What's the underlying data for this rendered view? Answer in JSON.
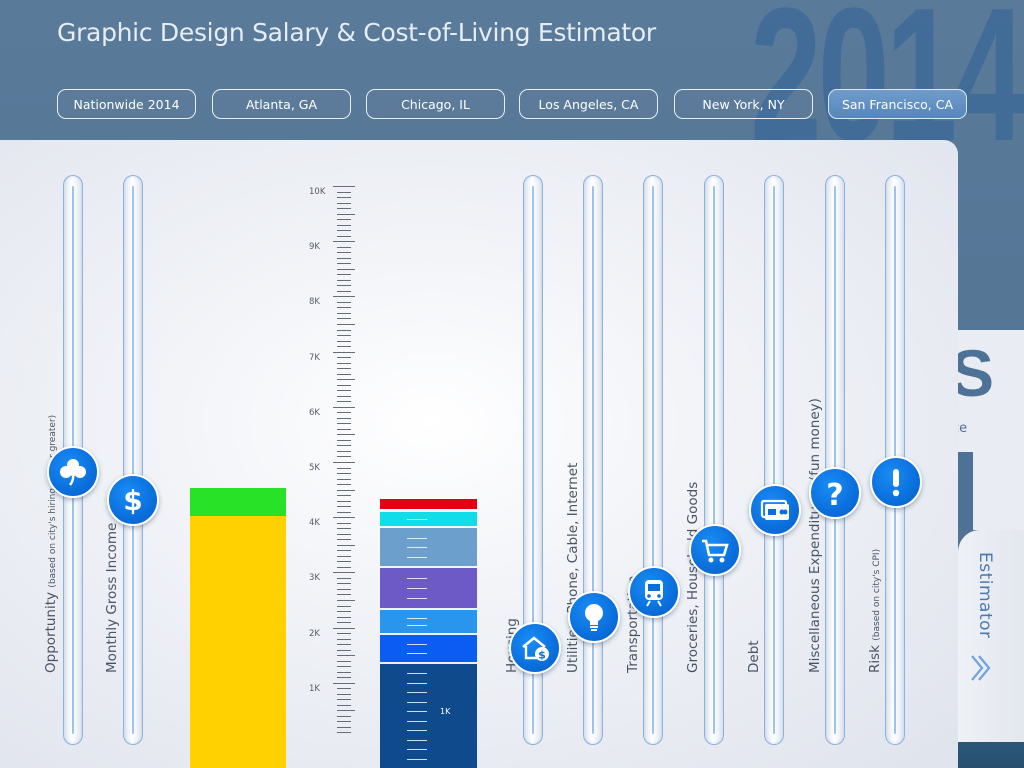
{
  "app": {
    "title": "Graphic Design Salary & Cost-of-Living Estimator",
    "year": "2014"
  },
  "cities": [
    {
      "label": "Nationwide 2014",
      "active": false
    },
    {
      "label": "Atlanta, GA",
      "active": false
    },
    {
      "label": "Chicago, IL",
      "active": false
    },
    {
      "label": "Los Angeles, CA",
      "active": false
    },
    {
      "label": "New York, NY",
      "active": false
    },
    {
      "label": "San Francisco, CA",
      "active": true
    }
  ],
  "sliders": {
    "opportunity": {
      "label": "Opportunity",
      "note": "(based on city's hiring",
      "note2": "of 1 or greater)",
      "icon": "clover-icon"
    },
    "income": {
      "label": "Monthly Gross Income",
      "icon": "dollar-icon"
    },
    "housing": {
      "label": "Housing",
      "icon": "house-dollar-icon"
    },
    "utilities": {
      "label": "Utilities, Phone, Cable, Internet",
      "icon": "lightbulb-icon"
    },
    "transportation": {
      "label": "Transportation",
      "icon": "train-icon"
    },
    "groceries": {
      "label": "Groceries, Household Goods",
      "icon": "cart-icon"
    },
    "debt": {
      "label": "Debt",
      "icon": "credit-card-icon"
    },
    "misc": {
      "label": "Miscellaneous Expenditures (fun money)",
      "icon": "question-icon"
    },
    "risk": {
      "label": "Risk",
      "note": "(based on city's CPI)",
      "icon": "exclamation-icon"
    }
  },
  "scale": {
    "labels": [
      "10K",
      "9K",
      "8K",
      "7K",
      "6K",
      "5K",
      "4K",
      "3K",
      "2K",
      "1K"
    ],
    "inner_label": "1K"
  },
  "tab": {
    "label": "Estimator"
  },
  "peek": {
    "big": "S",
    "small": "ce"
  },
  "colors": {
    "accent": "#0a6fdc",
    "income_net": "#ffd100",
    "income_surplus": "#27e227",
    "housing": "#0e4a8c",
    "utilities": "#0b5cf2",
    "transportation": "#2a95ec",
    "groceries": "#6e5ac6",
    "debt": "#6c9fcc",
    "misc": "#10dde8",
    "risk": "#e40012"
  }
}
